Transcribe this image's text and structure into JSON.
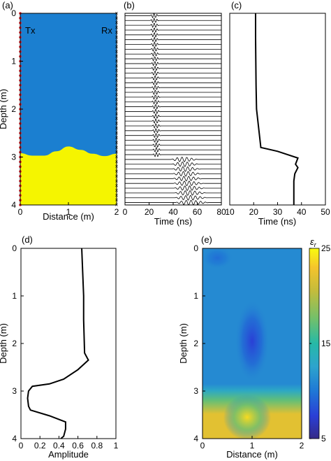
{
  "panels": {
    "a": {
      "label": "(a)",
      "tx": "Tx",
      "rx": "Rx"
    },
    "b": {
      "label": "(b)"
    },
    "c": {
      "label": "(c)"
    },
    "d": {
      "label": "(d)"
    },
    "e": {
      "label": "(e)",
      "colorbar_label": "ε",
      "colorbar_sub": "r"
    }
  },
  "chart_data": [
    {
      "panel": "a",
      "type": "heatmap",
      "xlabel": "Distance (m)",
      "ylabel": "Depth (m)",
      "xlim": [
        0,
        2
      ],
      "ylim": [
        0,
        4
      ],
      "y_inverted": true,
      "xticks": [
        "0",
        "1",
        "2"
      ],
      "yticks": [
        "0",
        "1",
        "2",
        "3",
        "4"
      ],
      "colors": {
        "upper": "#1b7fd0",
        "lower": "#f5f500",
        "tx": "#e8141e",
        "rx": "#000000"
      },
      "interface": {
        "x": [
          0,
          0.25,
          0.5,
          0.75,
          1.0,
          1.25,
          1.5,
          1.75,
          2.0
        ],
        "depth": [
          2.92,
          2.97,
          2.97,
          2.88,
          2.78,
          2.85,
          2.93,
          2.98,
          2.93
        ]
      },
      "antenna_depths": [
        0,
        0.1,
        0.2,
        0.3,
        0.4,
        0.5,
        0.6,
        0.7,
        0.8,
        0.9,
        1.0,
        1.1,
        1.2,
        1.3,
        1.4,
        1.5,
        1.6,
        1.7,
        1.8,
        1.9,
        2.0,
        2.1,
        2.2,
        2.3,
        2.4,
        2.5,
        2.6,
        2.7,
        2.8,
        2.9,
        3.0,
        3.1,
        3.2,
        3.3,
        3.4,
        3.5,
        3.6,
        3.7,
        3.8,
        3.9,
        4.0
      ]
    },
    {
      "panel": "b",
      "type": "line",
      "xlabel": "Time (ns)",
      "ylabel": "",
      "xlim": [
        0,
        80
      ],
      "xticks": [
        "0",
        "20",
        "40",
        "60",
        "80"
      ],
      "trace_count": 40,
      "trace_depth_range": [
        0.05,
        3.95
      ],
      "interface_depth": 2.97,
      "arrival_time_upper_ns": [
        21,
        26
      ],
      "arrival_time_lower_ns": [
        38,
        64
      ]
    },
    {
      "panel": "c",
      "type": "line",
      "xlabel": "Time (ns)",
      "ylabel": "",
      "xlim": [
        10,
        50
      ],
      "ylim": [
        0,
        4
      ],
      "xticks": [
        "10",
        "20",
        "30",
        "40",
        "50"
      ],
      "series": [
        {
          "x": [
            20.8,
            20.8,
            20.9,
            21.0,
            21.2,
            23,
            30,
            38.5,
            37.5,
            38.5,
            37.2,
            36.8,
            36.8,
            36.8
          ],
          "y": [
            0,
            0.5,
            1.0,
            1.5,
            2.0,
            2.8,
            2.88,
            3.02,
            3.15,
            3.22,
            3.35,
            3.5,
            3.7,
            4.0
          ]
        }
      ]
    },
    {
      "panel": "d",
      "type": "line",
      "xlabel": "Amplitude",
      "ylabel": "Depth (m)",
      "xlim": [
        0,
        1
      ],
      "ylim": [
        0,
        4
      ],
      "y_inverted": true,
      "xticks": [
        "0",
        "0.2",
        "0.4",
        "0.6",
        "0.8",
        "1"
      ],
      "yticks": [
        "0",
        "1",
        "2",
        "3",
        "4"
      ],
      "series": [
        {
          "x": [
            0.64,
            0.65,
            0.66,
            0.66,
            0.67,
            0.71,
            0.6,
            0.45,
            0.3,
            0.12,
            0.08,
            0.07,
            0.08,
            0.1,
            0.3,
            0.47,
            0.47,
            0.45,
            0.42
          ],
          "y": [
            0,
            0.5,
            1.0,
            1.5,
            2.2,
            2.35,
            2.55,
            2.75,
            2.85,
            2.9,
            3.0,
            3.15,
            3.32,
            3.4,
            3.52,
            3.65,
            3.8,
            3.95,
            4.0
          ]
        }
      ]
    },
    {
      "panel": "e",
      "type": "heatmap",
      "xlabel": "Distance (m)",
      "ylabel": "Depth (m)",
      "xlim": [
        0,
        2
      ],
      "ylim": [
        0,
        4
      ],
      "y_inverted": true,
      "xticks": [
        "0",
        "1",
        "2"
      ],
      "yticks": [
        "0",
        "1",
        "2",
        "3",
        "4"
      ],
      "colorbar": {
        "min": 5,
        "max": 25,
        "ticks": [
          "5",
          "15",
          "25"
        ]
      },
      "colormap": [
        "#352a87",
        "#2a3fd6",
        "#1f78d6",
        "#2da4cd",
        "#26b9a7",
        "#72c06b",
        "#c5bc3b",
        "#f5c42c",
        "#f9fb0e"
      ],
      "background_value": 11,
      "features": [
        {
          "name": "upper-anomaly",
          "x": 1.0,
          "depth": 1.95,
          "value": 7.5,
          "spread_x": 0.22,
          "spread_depth": 0.55
        },
        {
          "name": "surface-patch",
          "x": 0.3,
          "depth": 0.2,
          "value": 9.5,
          "spread_x": 0.2,
          "spread_depth": 0.15
        },
        {
          "name": "lower-layer",
          "depth_from": 3.2,
          "value": 21.5
        },
        {
          "name": "lower-peak",
          "x": 0.9,
          "depth": 3.55,
          "value": 23.5,
          "spread_x": 0.3,
          "spread_depth": 0.3
        }
      ]
    }
  ]
}
